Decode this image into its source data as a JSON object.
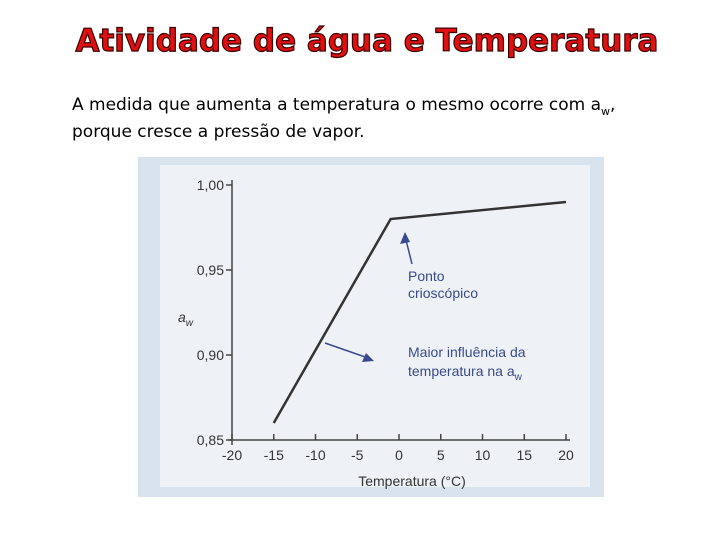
{
  "slide": {
    "title": "Atividade de água e Temperatura",
    "text_1": "A medida que aumenta a temperatura o mesmo ocorre com a",
    "text_1_sub": "w",
    "text_1_end": ",",
    "text_2": "porque cresce a pressão de vapor."
  },
  "chart_data": {
    "type": "line",
    "x": [
      -15,
      -1,
      20
    ],
    "series": [
      {
        "color": "#333333",
        "values": [
          0.86,
          0.98,
          0.99
        ]
      }
    ],
    "xlim": [
      -20,
      20
    ],
    "xticks": [
      -20,
      -15,
      -10,
      -5,
      0,
      5,
      10,
      15,
      20
    ],
    "ylim": [
      0.85,
      1.0
    ],
    "yticks": [
      {
        "value": 0.85,
        "label": "0,85"
      },
      {
        "value": 0.9,
        "label": "0,90"
      },
      {
        "value": 0.95,
        "label": "0,95"
      },
      {
        "value": 1.0,
        "label": "1,00"
      }
    ],
    "xlabel": "Temperatura (°C)",
    "ylabel": "a",
    "ylabel_sub": "w",
    "annotation_1": [
      "Ponto",
      "crioscópico"
    ],
    "annotation_2": [
      "Maior influência da",
      "temperatura na a"
    ],
    "annotation_2_sub": "w"
  }
}
